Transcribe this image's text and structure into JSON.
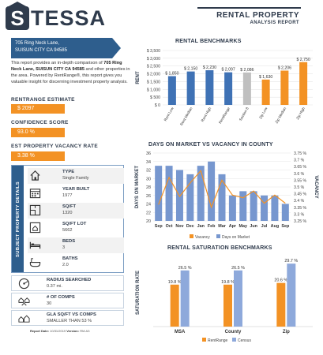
{
  "brand": {
    "logo_text": "TESSA",
    "logo_initial": "S"
  },
  "report": {
    "title": "RENTAL PROPERTY",
    "subtitle": "ANALYSIS REPORT"
  },
  "address": {
    "line1": "705 Ring Neck Lane,",
    "line2": "SUISUN CITY CA 94585"
  },
  "intro": {
    "pre": "This report provides an in-depth comparison of ",
    "bold": "705 Ring Neck Lane, SUISUN CITY CA 94585",
    "post": " and other properties in the area. Powered by RentRange®, this report gives you valuable insight for discerning investment property analysis."
  },
  "stats": {
    "rent_label": "RENTRANGE ESTIMATE",
    "rent_value": "$ 2097",
    "confidence_label": "CONFIDENCE SCORE",
    "confidence_value": "93.0 %",
    "vacancy_label": "EST PROPERTY VACANCY RATE",
    "vacancy_value": "3.38 %"
  },
  "details": {
    "side_label": "SUBJECT PROPERTY DETAILS",
    "rows": [
      {
        "icon": "house-icon",
        "label": "TYPE",
        "value": "Single Family"
      },
      {
        "icon": "calendar-icon",
        "label": "YEAR BUILT",
        "value": "1977"
      },
      {
        "icon": "floor-plan-icon",
        "label": "SQ/FT",
        "value": "1320"
      },
      {
        "icon": "lot-icon",
        "label": "SQ/FT LOT",
        "value": "5662"
      },
      {
        "icon": "bed-icon",
        "label": "BEDS",
        "value": "3"
      },
      {
        "icon": "bath-icon",
        "label": "BATHS",
        "value": "2.0"
      }
    ]
  },
  "extras": [
    {
      "icon": "radius-icon",
      "label": "RADIUS SEARCHED",
      "value": "0.37 mi."
    },
    {
      "icon": "comps-icon",
      "label": "# OF COMPS",
      "value": "30"
    },
    {
      "icon": "gla-icon",
      "label": "GLA SQ/FT VS COMPS",
      "value": "SMALLER THAN 53 %"
    }
  ],
  "footnote": {
    "label": "Report Date:",
    "date": "10/31/2019",
    "version_label": "Version:",
    "version": "RM.A3"
  },
  "colors": {
    "navy": "#2f3b4c",
    "blue": "#2e5e8d",
    "orange": "#f39224",
    "bar_blue": "#3f72b5",
    "gray": "#bfbfbf",
    "slate": "#8ea9db"
  },
  "chart_data": [
    {
      "type": "bar",
      "title": "RENTAL BENCHMARKS",
      "ylabel": "RENT",
      "ylim": [
        0,
        3500
      ],
      "yticks": [
        "$ 0",
        "$ 500",
        "$ 1,000",
        "$ 1,500",
        "$ 2,000",
        "$ 2,500",
        "$ 3,000",
        "$ 3,500"
      ],
      "categories": [
        "Rent Low",
        "Rent Median",
        "Rent High",
        "RentRange",
        "Section 8",
        "Zip Low",
        "Zip Median",
        "Zip High"
      ],
      "values": [
        1850,
        2150,
        2230,
        2097,
        2086,
        1630,
        2206,
        2750
      ],
      "labels": [
        "$ 1,850",
        "$ 2,150",
        "$ 2,230",
        "$ 2,097",
        "$ 2,086",
        "$ 1,630",
        "$ 2,206",
        "$ 2,750"
      ],
      "colors": [
        "#3f72b5",
        "#3f72b5",
        "#3f72b5",
        "#3f72b5",
        "#bfbfbf",
        "#f39224",
        "#f39224",
        "#f39224"
      ]
    },
    {
      "type": "bar",
      "title": "DAYS ON MARKET VS VACANCY IN COUNTY",
      "ylabel": "DAYS ON MARKET",
      "y2label": "VACANCY",
      "categories": [
        "Sep",
        "Oct",
        "Nov",
        "Dec",
        "Jan",
        "Feb",
        "Mar",
        "Apr",
        "May",
        "Jun",
        "Jul",
        "Aug",
        "Sep"
      ],
      "ylim": [
        20,
        36
      ],
      "yticks": [
        "20",
        "22",
        "24",
        "26",
        "28",
        "30",
        "32",
        "34",
        "36"
      ],
      "y2lim": [
        3.25,
        3.75
      ],
      "y2ticks": [
        "3.25 %",
        "3.3 %",
        "3.35 %",
        "3.4 %",
        "3.45 %",
        "3.5 %",
        "3.55 %",
        "3.6 %",
        "3.65 %",
        "3.7 %",
        "3.75 %"
      ],
      "series": [
        {
          "name": "Days on Market",
          "kind": "bar",
          "values": [
            33,
            33,
            32,
            31,
            33,
            34,
            31,
            26,
            27,
            27,
            26,
            26,
            24
          ]
        },
        {
          "name": "Vacancy",
          "kind": "line",
          "values": [
            3.37,
            3.57,
            3.43,
            3.53,
            3.62,
            3.35,
            3.55,
            3.44,
            3.42,
            3.47,
            3.38,
            3.44,
            3.38
          ]
        }
      ]
    },
    {
      "type": "bar",
      "title": "RENTAL SATURATION BENCHMARKS",
      "ylabel": "SATURATION RATE",
      "categories": [
        "MSA",
        "County",
        "Zip"
      ],
      "ylim": [
        0,
        32
      ],
      "series": [
        {
          "name": "RentRange",
          "values": [
            19.8,
            19.8,
            20.6
          ],
          "labels": [
            "19.8 %",
            "19.8 %",
            "20.6 %"
          ],
          "color": "#f39224"
        },
        {
          "name": "Census",
          "values": [
            26.5,
            26.5,
            29.7
          ],
          "labels": [
            "26.5 %",
            "26.5 %",
            "29.7 %"
          ],
          "color": "#8ea9db"
        }
      ]
    }
  ]
}
